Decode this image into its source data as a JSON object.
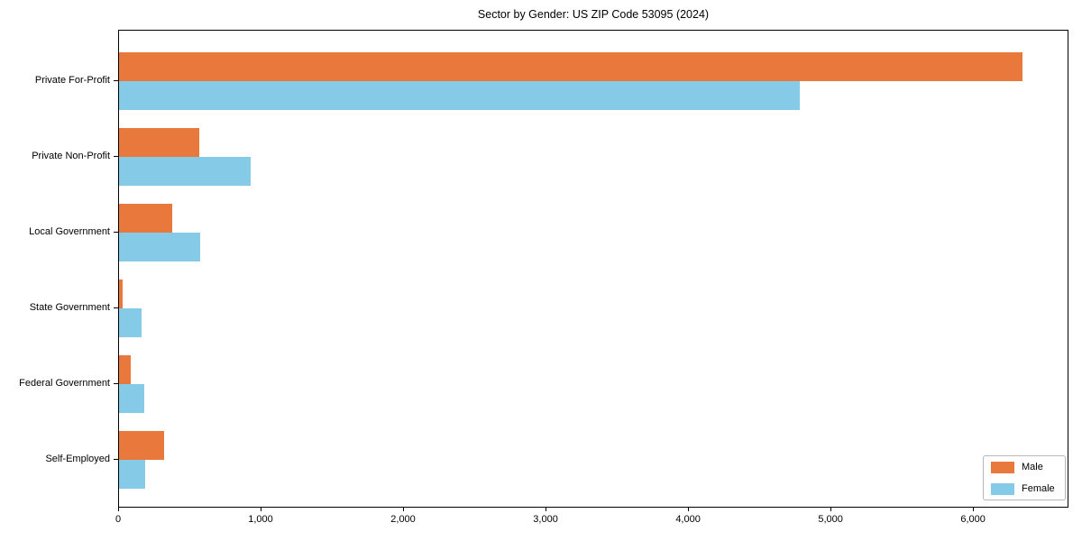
{
  "chart_data": {
    "type": "bar",
    "orientation": "horizontal",
    "title": "Sector by Gender: US ZIP Code 53095 (2024)",
    "categories": [
      "Private For-Profit",
      "Private Non-Profit",
      "Local Government",
      "State Government",
      "Federal Government",
      "Self-Employed"
    ],
    "series": [
      {
        "name": "Male",
        "color": "#e8783b",
        "values": [
          6350,
          565,
          375,
          25,
          80,
          320
        ]
      },
      {
        "name": "Female",
        "color": "#85cbe8",
        "values": [
          4790,
          925,
          570,
          160,
          180,
          185
        ]
      }
    ],
    "xlabel": "",
    "ylabel": "",
    "xlim": [
      0,
      6670
    ],
    "xticks": [
      0,
      1000,
      2000,
      3000,
      4000,
      5000,
      6000
    ],
    "xtick_labels": [
      "0",
      "1,000",
      "2,000",
      "3,000",
      "4,000",
      "5,000",
      "6,000"
    ],
    "grid": false,
    "legend": {
      "position": "lower right"
    }
  }
}
